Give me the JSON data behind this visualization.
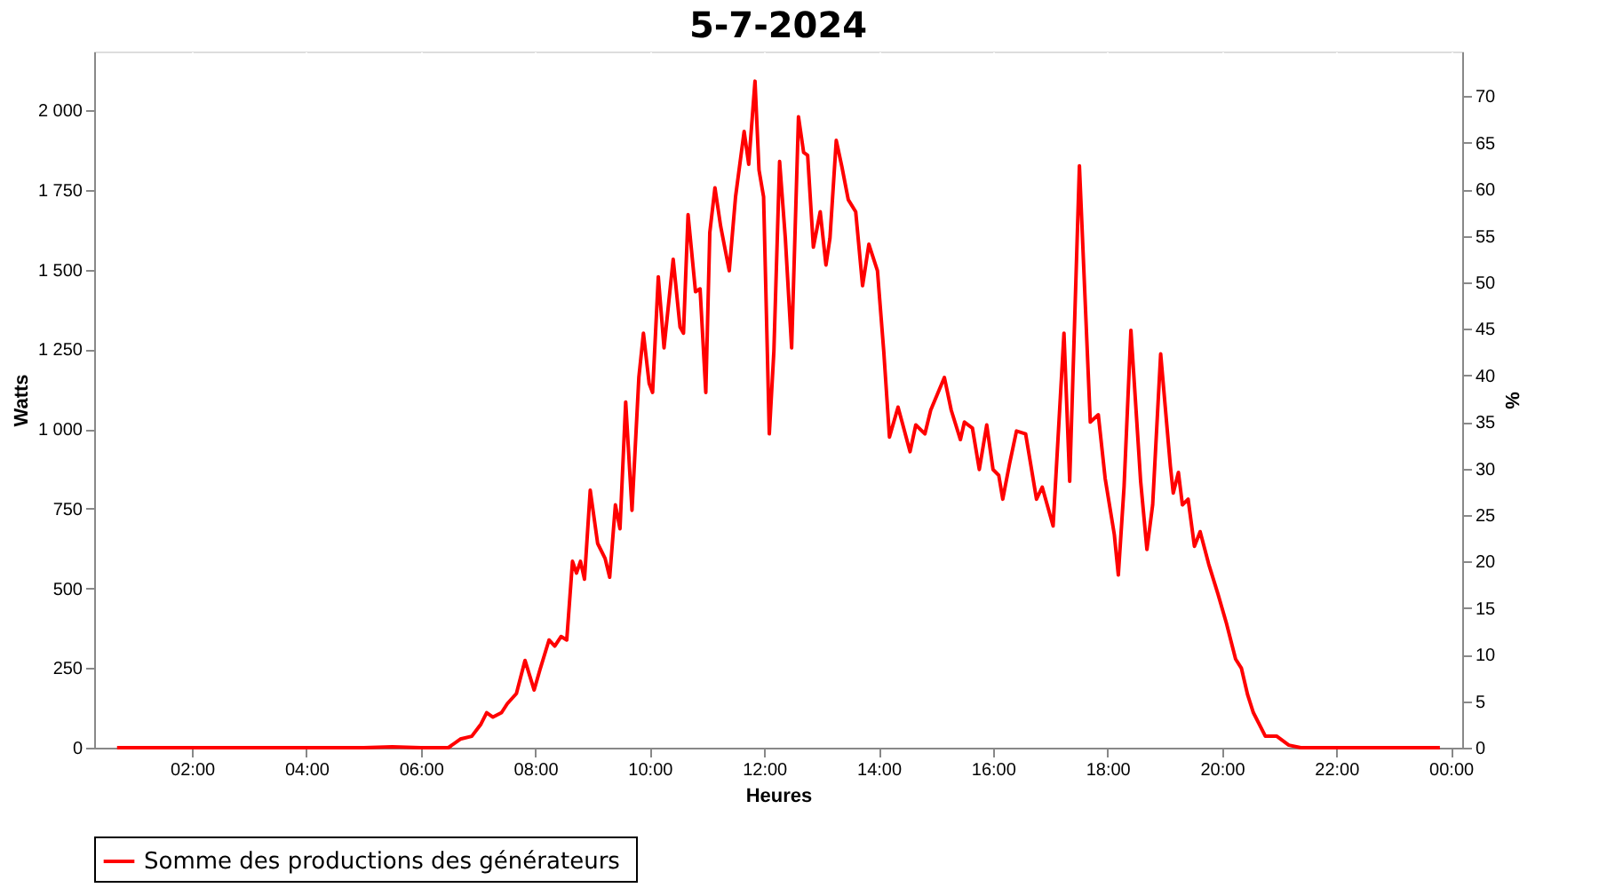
{
  "chart_data": {
    "type": "line",
    "title": "5-7-2024",
    "xlabel": "Heures",
    "ylabel": "Watts",
    "y2label": "%",
    "xlim": [
      0.29,
      24.2
    ],
    "xticks": [
      {
        "value": 2,
        "label": "02:00"
      },
      {
        "value": 4,
        "label": "04:00"
      },
      {
        "value": 6,
        "label": "06:00"
      },
      {
        "value": 8,
        "label": "08:00"
      },
      {
        "value": 10,
        "label": "10:00"
      },
      {
        "value": 12,
        "label": "12:00"
      },
      {
        "value": 14,
        "label": "14:00"
      },
      {
        "value": 16,
        "label": "16:00"
      },
      {
        "value": 18,
        "label": "18:00"
      },
      {
        "value": 20,
        "label": "20:00"
      },
      {
        "value": 22,
        "label": "22:00"
      },
      {
        "value": 24,
        "label": "00:00"
      }
    ],
    "ylim": [
      0,
      2185
    ],
    "yticks": [
      0,
      250,
      500,
      750,
      {
        "value": 1000,
        "label": "1 000"
      },
      {
        "value": 1250,
        "label": "1 250"
      },
      {
        "value": 1500,
        "label": "1 500"
      },
      {
        "value": 1750,
        "label": "1 750"
      },
      {
        "value": 2000,
        "label": "2 000"
      }
    ],
    "y2lim": [
      0,
      74.8
    ],
    "y2ticks": [
      0,
      5,
      10,
      15,
      20,
      25,
      30,
      35,
      40,
      45,
      50,
      55,
      60,
      65,
      70
    ],
    "grid": true,
    "legend": "bottom",
    "line_style": "solid",
    "series": [
      {
        "name": "Somme des productions des  générateurs",
        "color": "#ff0000",
        "x": [
          0.69,
          5.0,
          5.5,
          6.0,
          6.48,
          6.69,
          6.89,
          7.05,
          7.15,
          7.26,
          7.41,
          7.51,
          7.67,
          7.82,
          7.98,
          8.08,
          8.24,
          8.34,
          8.45,
          8.55,
          8.65,
          8.72,
          8.79,
          8.86,
          8.96,
          9.09,
          9.22,
          9.3,
          9.4,
          9.48,
          9.58,
          9.69,
          9.81,
          9.89,
          9.99,
          10.05,
          10.15,
          10.25,
          10.41,
          10.53,
          10.59,
          10.67,
          10.8,
          10.88,
          10.98,
          11.05,
          11.14,
          11.24,
          11.39,
          11.5,
          11.65,
          11.73,
          11.84,
          11.91,
          11.99,
          12.09,
          12.17,
          12.27,
          12.37,
          12.48,
          12.6,
          12.69,
          12.76,
          12.86,
          12.98,
          13.08,
          13.15,
          13.26,
          13.36,
          13.47,
          13.6,
          13.72,
          13.83,
          13.98,
          14.09,
          14.19,
          14.34,
          14.55,
          14.65,
          14.81,
          14.91,
          15.15,
          15.27,
          15.43,
          15.5,
          15.64,
          15.76,
          15.89,
          16.0,
          16.1,
          16.17,
          16.29,
          16.41,
          16.57,
          16.76,
          16.86,
          17.05,
          17.24,
          17.34,
          17.51,
          17.7,
          17.84,
          17.96,
          18.12,
          18.19,
          18.29,
          18.41,
          18.58,
          18.69,
          18.79,
          18.93,
          19.1,
          19.15,
          19.24,
          19.31,
          19.41,
          19.52,
          19.62,
          19.77,
          19.93,
          20.08,
          20.24,
          20.34,
          20.45,
          20.55,
          20.76,
          20.96,
          21.17,
          21.38,
          23.81
        ],
        "values": [
          0,
          0,
          3,
          0,
          0,
          27,
          36,
          74,
          110,
          96,
          110,
          138,
          170,
          274,
          181,
          244,
          338,
          319,
          349,
          338,
          585,
          548,
          585,
          529,
          808,
          641,
          594,
          535,
          762,
          687,
          1085,
          745,
          1162,
          1301,
          1143,
          1115,
          1478,
          1255,
          1533,
          1320,
          1301,
          1673,
          1431,
          1440,
          1115,
          1617,
          1757,
          1636,
          1497,
          1729,
          1934,
          1831,
          2092,
          1813,
          1729,
          985,
          1245,
          1840,
          1599,
          1255,
          1980,
          1868,
          1859,
          1571,
          1682,
          1515,
          1599,
          1906,
          1822,
          1720,
          1682,
          1450,
          1580,
          1497,
          1245,
          975,
          1069,
          929,
          1013,
          985,
          1059,
          1162,
          1059,
          967,
          1022,
          1003,
          873,
          1013,
          873,
          855,
          780,
          892,
          994,
          985,
          780,
          818,
          696,
          1301,
          836,
          1826,
          1022,
          1045,
          845,
          669,
          542,
          818,
          1310,
          836,
          622,
          762,
          1236,
          883,
          799,
          864,
          762,
          780,
          632,
          678,
          576,
          483,
          390,
          278,
          250,
          166,
          110,
          36,
          36,
          8,
          0,
          0
        ]
      }
    ]
  }
}
